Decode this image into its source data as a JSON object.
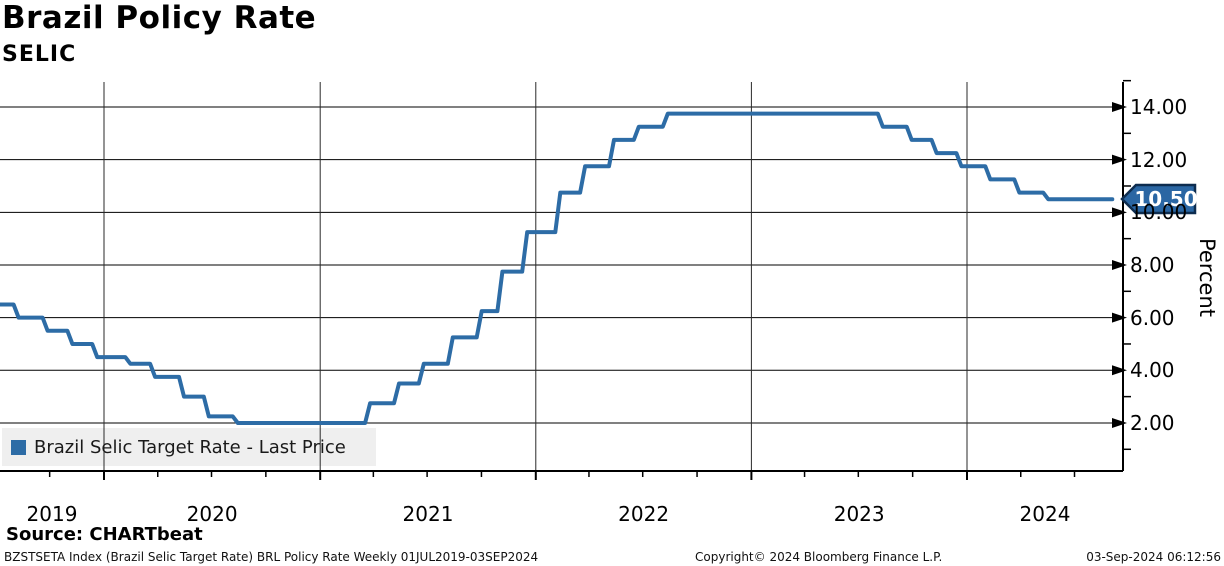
{
  "header": {
    "title": "Brazil Policy Rate",
    "subtitle": "SELIC"
  },
  "chart": {
    "legend": {
      "label": "Brazil Selic Target Rate - Last Price"
    },
    "last_price": {
      "label": "10.50",
      "value": 10.5
    },
    "y_axis": {
      "label": "Percent",
      "tick_values": [
        2,
        4,
        6,
        8,
        10,
        12,
        14
      ],
      "tick_labels": [
        "2.00",
        "4.00",
        "6.00",
        "8.00",
        "10.00",
        "12.00",
        "14.00"
      ],
      "minor_tick_values": [
        1,
        3,
        5,
        7,
        9,
        11,
        13,
        15
      ]
    },
    "x_axis": {
      "year_labels": [
        "2019",
        "2020",
        "2021",
        "2022",
        "2023",
        "2024"
      ]
    }
  },
  "chart_data": {
    "type": "line",
    "step": true,
    "title": "Brazil Policy Rate",
    "subtitle": "SELIC",
    "ylabel": "Percent",
    "ylim": [
      0.2,
      15.0
    ],
    "x_range": [
      "2019-07-01",
      "2024-09-03"
    ],
    "x_tick_years": [
      2019,
      2020,
      2021,
      2022,
      2023,
      2024
    ],
    "grid": true,
    "legend_position": "bottom-left",
    "series": [
      {
        "name": "Brazil Selic Target Rate - Last Price",
        "color": "#2d6ca6",
        "points": [
          [
            "2019-07-01",
            6.5
          ],
          [
            "2019-08-01",
            6.0
          ],
          [
            "2019-09-19",
            5.5
          ],
          [
            "2019-10-31",
            5.0
          ],
          [
            "2019-12-12",
            4.5
          ],
          [
            "2020-02-06",
            4.25
          ],
          [
            "2020-03-19",
            3.75
          ],
          [
            "2020-05-07",
            3.0
          ],
          [
            "2020-06-18",
            2.25
          ],
          [
            "2020-08-06",
            2.0
          ],
          [
            "2021-03-18",
            2.75
          ],
          [
            "2021-05-06",
            3.5
          ],
          [
            "2021-06-17",
            4.25
          ],
          [
            "2021-08-05",
            5.25
          ],
          [
            "2021-09-23",
            6.25
          ],
          [
            "2021-10-28",
            7.75
          ],
          [
            "2021-12-09",
            9.25
          ],
          [
            "2022-02-03",
            10.75
          ],
          [
            "2022-03-17",
            11.75
          ],
          [
            "2022-05-05",
            12.75
          ],
          [
            "2022-06-16",
            13.25
          ],
          [
            "2022-08-04",
            13.75
          ],
          [
            "2023-08-03",
            13.25
          ],
          [
            "2023-09-21",
            12.75
          ],
          [
            "2023-11-02",
            12.25
          ],
          [
            "2023-12-14",
            11.75
          ],
          [
            "2024-02-01",
            11.25
          ],
          [
            "2024-03-21",
            10.75
          ],
          [
            "2024-05-09",
            10.5
          ],
          [
            "2024-09-03",
            10.5
          ]
        ]
      }
    ],
    "last_value": 10.5
  },
  "footer": {
    "source": "Source: CHARTbeat",
    "left": "BZSTSETA Index (Brazil Selic Target Rate) BRL Policy Rate  Weekly 01JUL2019-03SEP2024",
    "center": "Copyright© 2024 Bloomberg Finance L.P.",
    "right": "03-Sep-2024 06:12:56"
  },
  "colors": {
    "line": "#2d6ca6",
    "tag_fill": "#2a66a3",
    "tag_border": "#0d2c4f",
    "tag_text": "#ffffff",
    "legend_bg": "#efefef",
    "grid": "#000000"
  }
}
